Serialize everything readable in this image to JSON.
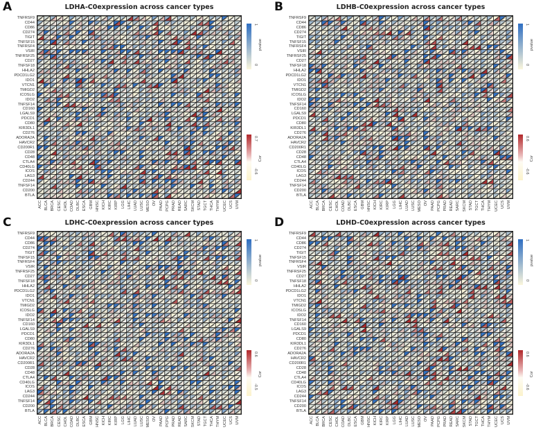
{
  "figure": {
    "colors": {
      "pvalue_high": "#2f6fc2",
      "pvalue_low": "#fbf6dc",
      "cor_high": "#b2282b",
      "cor_low": "#fcf3cc",
      "grid_line": "#222222"
    },
    "rows": [
      "TNFRSF9",
      "CD44",
      "CD86",
      "CD274",
      "TIGIT",
      "TNFSF15",
      "TNFRSF4",
      "VSIR",
      "TNFRSF25",
      "CD27",
      "TNFSF18",
      "HHLA2",
      "PDCD1LG2",
      "IDO1",
      "VTCN1",
      "TMIGD2",
      "ICOSLG",
      "IDO2",
      "TNFSF14",
      "CD160",
      "LGALS9",
      "PDCD1",
      "CD80",
      "KIR3DL1",
      "CD276",
      "ADORA2A",
      "HAVCR2",
      "CD200R1",
      "CD28",
      "CD48",
      "CTLA4",
      "CD40LG",
      "ICOS",
      "LAG3",
      "CD244",
      "TNFSF14",
      "CD200",
      "BTLA"
    ],
    "columns": [
      "ACC",
      "BLCA",
      "BRCA",
      "CESC",
      "CHOL",
      "COAD",
      "DLBC",
      "ESCA",
      "GBM",
      "HNSC",
      "KICH",
      "KIRC",
      "KIRP",
      "LGG",
      "LIHC",
      "LUAD",
      "LUSC",
      "MESO",
      "OV",
      "PAAD",
      "PCPG",
      "PRAD",
      "READ",
      "SARC",
      "SKCM",
      "STAD",
      "TGCT",
      "THCA",
      "THYM",
      "UCEC",
      "UCS",
      "UVM"
    ]
  },
  "panels": [
    {
      "letter": "A",
      "title": "LDHA-C0expression across cancer types",
      "pvalue_legend": {
        "title": "pvalue",
        "max": "1",
        "min": "0"
      },
      "cor_legend": {
        "title": "Cor",
        "max": "0.7",
        "min": "-0.6"
      },
      "seed": 11
    },
    {
      "letter": "B",
      "title": "LDHB-C0expression across cancer types",
      "pvalue_legend": {
        "title": "pvalue",
        "max": "1",
        "min": "0"
      },
      "cor_legend": {
        "title": "Cor",
        "max": "0.6",
        "min": "-0.6"
      },
      "seed": 23
    },
    {
      "letter": "C",
      "title": "LDHC-C0expression across cancer types",
      "pvalue_legend": {
        "title": "pvalue",
        "max": "1",
        "min": "0"
      },
      "cor_legend": {
        "title": "Cor",
        "max": "0.6",
        "min": "-0.5"
      },
      "seed": 37
    },
    {
      "letter": "D",
      "title": "LDHD-C0expression across cancer types",
      "pvalue_legend": {
        "title": "pvalue",
        "max": "1",
        "min": "0"
      },
      "cor_legend": {
        "title": "Cor",
        "max": "0.6",
        "min": "-0.6"
      },
      "seed": 51
    }
  ],
  "chart_data": [
    {
      "type": "heatmap",
      "title": "LDHA-C0expression across cancer types",
      "xlabel": "",
      "ylabel": "",
      "cell_style": "diagonal split: lower-left triangle = pvalue, upper-right triangle = Cor",
      "legend": [
        {
          "name": "pvalue",
          "range": [
            0,
            1
          ]
        },
        {
          "name": "Cor",
          "range": [
            -0.6,
            0.7
          ]
        }
      ],
      "legend_position": "right",
      "grid": true,
      "x": "figure.columns",
      "y": "figure.rows"
    },
    {
      "type": "heatmap",
      "title": "LDHB-C0expression across cancer types",
      "xlabel": "",
      "ylabel": "",
      "cell_style": "diagonal split: lower-left triangle = pvalue, upper-right triangle = Cor",
      "legend": [
        {
          "name": "pvalue",
          "range": [
            0,
            1
          ]
        },
        {
          "name": "Cor",
          "range": [
            -0.6,
            0.6
          ]
        }
      ],
      "legend_position": "right",
      "grid": true,
      "x": "figure.columns",
      "y": "figure.rows"
    },
    {
      "type": "heatmap",
      "title": "LDHC-C0expression across cancer types",
      "xlabel": "",
      "ylabel": "",
      "cell_style": "diagonal split: lower-left triangle = pvalue, upper-right triangle = Cor",
      "legend": [
        {
          "name": "pvalue",
          "range": [
            0,
            1
          ]
        },
        {
          "name": "Cor",
          "range": [
            -0.5,
            0.6
          ]
        }
      ],
      "legend_position": "right",
      "grid": true,
      "x": "figure.columns",
      "y": "figure.rows"
    },
    {
      "type": "heatmap",
      "title": "LDHD-C0expression across cancer types",
      "xlabel": "",
      "ylabel": "",
      "cell_style": "diagonal split: lower-left triangle = pvalue, upper-right triangle = Cor",
      "legend": [
        {
          "name": "pvalue",
          "range": [
            0,
            1
          ]
        },
        {
          "name": "Cor",
          "range": [
            -0.6,
            0.6
          ]
        }
      ],
      "legend_position": "right",
      "grid": true,
      "x": "figure.columns",
      "y": "figure.rows"
    }
  ]
}
